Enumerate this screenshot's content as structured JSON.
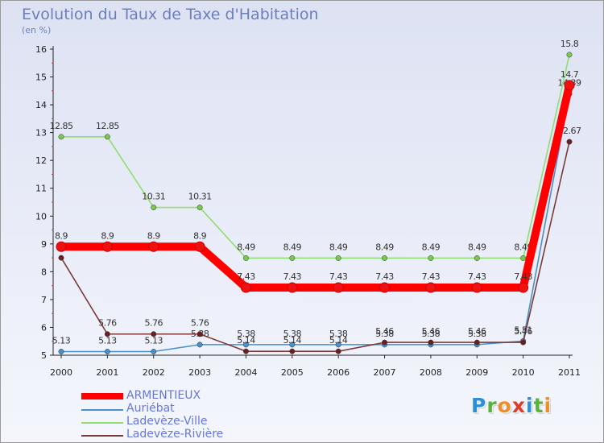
{
  "title": "Evolution du Taux de Taxe d'Habitation",
  "subtitle": "(en %)",
  "logo": {
    "letters": [
      "P",
      "r",
      "o",
      "x",
      "i",
      "t",
      "i"
    ],
    "colors": [
      "#2a8fd6",
      "#5ab23c",
      "#f28c28",
      "#e03c2c",
      "#2a8fd6",
      "#5ab23c",
      "#f28c28"
    ]
  },
  "chart_data": {
    "type": "line",
    "x": [
      "2000",
      "2001",
      "2002",
      "2003",
      "2004",
      "2005",
      "2006",
      "2007",
      "2008",
      "2009",
      "2010",
      "2011"
    ],
    "ylim": [
      5,
      16
    ],
    "yticks": [
      "5",
      "6",
      "7",
      "8",
      "9",
      "10",
      "11",
      "12",
      "13",
      "14",
      "15",
      "16"
    ],
    "grid": false,
    "legend_position": "bottom-left",
    "series": [
      {
        "name": "Auriébat",
        "color": "#4a90c8",
        "point_color": "#4a90c8",
        "values": [
          5.13,
          5.13,
          5.13,
          5.38,
          5.38,
          5.38,
          5.38,
          5.38,
          5.38,
          5.38,
          5.51,
          14.39
        ],
        "labels": [
          "5.13",
          "5.13",
          "5.13",
          "5.38",
          "5.38",
          "5.38",
          "5.38",
          "5.38",
          "5.38",
          "5.38",
          "5.51",
          "14.39"
        ]
      },
      {
        "name": "Ladevèze-Ville",
        "color": "#90dd70",
        "point_color": "#7ac84c",
        "values": [
          12.85,
          12.85,
          10.31,
          10.31,
          8.49,
          8.49,
          8.49,
          8.49,
          8.49,
          8.49,
          8.49,
          15.8
        ],
        "labels": [
          "12.85",
          "12.85",
          "10.31",
          "10.31",
          "8.49",
          "8.49",
          "8.49",
          "8.49",
          "8.49",
          "8.49",
          "8.49",
          "15.8"
        ]
      },
      {
        "name": "Ladevèze-Rivière",
        "color": "#7a3a3a",
        "point_color": "#6a2020",
        "values": [
          8.5,
          5.76,
          5.76,
          5.76,
          5.14,
          5.14,
          5.14,
          5.46,
          5.46,
          5.46,
          5.46,
          12.67
        ],
        "labels": [
          "",
          "5.76",
          "5.76",
          "5.76",
          "5.14",
          "5.14",
          "5.14",
          "5.46",
          "5.46",
          "5.46",
          "5.46",
          "12.67"
        ]
      },
      {
        "name": "ARMENTIEUX",
        "color": "#ff0000",
        "point_color": "#ee1111",
        "thick": true,
        "values": [
          8.9,
          8.9,
          8.9,
          8.9,
          7.43,
          7.43,
          7.43,
          7.43,
          7.43,
          7.43,
          7.43,
          14.7
        ],
        "labels": [
          "8.9",
          "8.9",
          "8.9",
          "8.9",
          "7.43",
          "7.43",
          "7.43",
          "7.43",
          "7.43",
          "7.43",
          "7.43",
          "14.7"
        ]
      }
    ],
    "legend_order": [
      3,
      0,
      1,
      2
    ]
  }
}
